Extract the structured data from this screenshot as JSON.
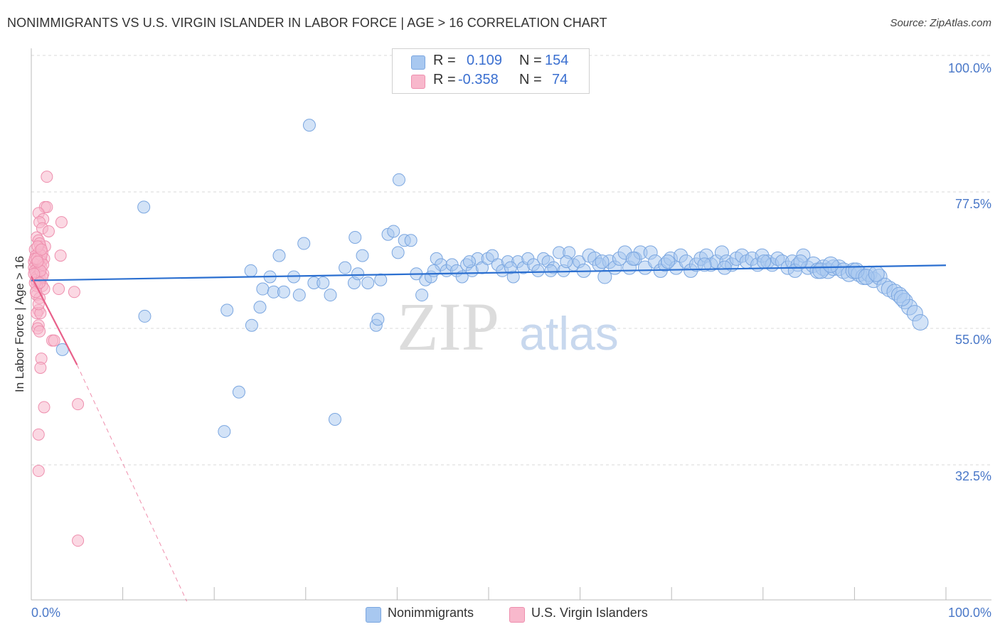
{
  "header": {
    "title": "NONIMMIGRANTS VS U.S. VIRGIN ISLANDER IN LABOR FORCE | AGE > 16 CORRELATION CHART",
    "source": "Source: ZipAtlas.com"
  },
  "watermark": {
    "zip": "ZIP",
    "atlas": "atlas"
  },
  "legend": {
    "r_label": "R =",
    "n_label": "N =",
    "series": [
      {
        "name": "Nonimmigrants",
        "r": "0.109",
        "n": "154",
        "color": "#a8c8f0"
      },
      {
        "name": "U.S. Virgin Islanders",
        "r": "-0.358",
        "n": "74",
        "color": "#f8b8cc"
      }
    ]
  },
  "colors": {
    "blue_fill": "#a8c8f0",
    "blue_stroke": "#7aa6e0",
    "blue_line": "#2b6fd0",
    "pink_fill": "#f8b8cc",
    "pink_stroke": "#ee8fae",
    "pink_line": "#e8608a",
    "tick_text": "#4a78c8",
    "grid": "#d8d8d8"
  },
  "chart_data": {
    "type": "scatter",
    "title": "NONIMMIGRANTS VS U.S. VIRGIN ISLANDER IN LABOR FORCE | AGE > 16 CORRELATION CHART",
    "xlabel": "",
    "ylabel": "In Labor Force | Age > 16",
    "xlim": [
      0,
      100
    ],
    "ylim": [
      10,
      102
    ],
    "y_ticks": [
      32.5,
      55.0,
      77.5,
      100.0
    ],
    "y_tick_labels": [
      "32.5%",
      "55.0%",
      "77.5%",
      "100.0%"
    ],
    "x_tick_labels": [
      "0.0%",
      "100.0%"
    ],
    "legend_position": "top-center",
    "series": [
      {
        "name": "Nonimmigrants",
        "trend": {
          "x": [
            0,
            100
          ],
          "y": [
            62.9,
            65.4
          ]
        },
        "points": [
          [
            12.3,
            75.0
          ],
          [
            3.4,
            51.5
          ],
          [
            12.4,
            57.0
          ],
          [
            21.4,
            58.0
          ],
          [
            21.1,
            38.0
          ],
          [
            22.7,
            44.5
          ],
          [
            24.0,
            64.5
          ],
          [
            24.1,
            55.5
          ],
          [
            25.0,
            58.5
          ],
          [
            25.3,
            61.5
          ],
          [
            26.1,
            63.5
          ],
          [
            26.5,
            61.0
          ],
          [
            27.1,
            67.0
          ],
          [
            27.6,
            61.0
          ],
          [
            28.7,
            63.5
          ],
          [
            29.3,
            60.5
          ],
          [
            29.8,
            69.0
          ],
          [
            30.4,
            88.5
          ],
          [
            30.9,
            62.5
          ],
          [
            31.9,
            62.5
          ],
          [
            32.7,
            60.5
          ],
          [
            33.2,
            40.0
          ],
          [
            34.3,
            65.0
          ],
          [
            35.3,
            62.5
          ],
          [
            35.4,
            70.0
          ],
          [
            35.7,
            64.0
          ],
          [
            36.2,
            67.0
          ],
          [
            36.8,
            62.5
          ],
          [
            37.7,
            55.5
          ],
          [
            37.9,
            56.5
          ],
          [
            38.2,
            63.0
          ],
          [
            39.0,
            70.5
          ],
          [
            39.6,
            71.0
          ],
          [
            40.1,
            67.5
          ],
          [
            40.2,
            79.5
          ],
          [
            40.8,
            69.5
          ],
          [
            41.5,
            69.5
          ],
          [
            42.1,
            64.0
          ],
          [
            42.7,
            60.5
          ],
          [
            43.1,
            63.0
          ],
          [
            43.7,
            63.5
          ],
          [
            44.3,
            66.5
          ],
          [
            44.8,
            65.5
          ],
          [
            45.4,
            64.5
          ],
          [
            46.0,
            65.5
          ],
          [
            46.5,
            64.5
          ],
          [
            47.1,
            63.5
          ],
          [
            47.6,
            65.5
          ],
          [
            48.2,
            64.5
          ],
          [
            48.8,
            66.5
          ],
          [
            49.3,
            65.0
          ],
          [
            49.9,
            66.5
          ],
          [
            50.4,
            67.0
          ],
          [
            51.0,
            65.5
          ],
          [
            51.5,
            64.5
          ],
          [
            52.1,
            66.0
          ],
          [
            52.7,
            63.5
          ],
          [
            53.2,
            66.0
          ],
          [
            53.8,
            65.0
          ],
          [
            54.3,
            66.5
          ],
          [
            54.9,
            65.5
          ],
          [
            55.4,
            64.5
          ],
          [
            56.0,
            66.5
          ],
          [
            56.5,
            66.0
          ],
          [
            57.1,
            65.0
          ],
          [
            57.7,
            67.5
          ],
          [
            58.2,
            64.5
          ],
          [
            58.8,
            67.5
          ],
          [
            59.3,
            65.5
          ],
          [
            59.9,
            66.0
          ],
          [
            60.4,
            64.5
          ],
          [
            61.0,
            67.0
          ],
          [
            61.6,
            66.5
          ],
          [
            62.1,
            65.5
          ],
          [
            62.7,
            63.5
          ],
          [
            63.2,
            66.0
          ],
          [
            63.8,
            65.0
          ],
          [
            64.3,
            66.5
          ],
          [
            64.9,
            67.5
          ],
          [
            65.4,
            65.0
          ],
          [
            66.0,
            66.5
          ],
          [
            66.6,
            67.5
          ],
          [
            67.1,
            65.0
          ],
          [
            67.7,
            67.5
          ],
          [
            68.2,
            66.0
          ],
          [
            68.8,
            64.5
          ],
          [
            69.3,
            65.5
          ],
          [
            69.9,
            66.5
          ],
          [
            70.5,
            65.0
          ],
          [
            71.0,
            67.0
          ],
          [
            71.6,
            66.0
          ],
          [
            72.1,
            64.5
          ],
          [
            72.7,
            65.5
          ],
          [
            73.2,
            66.5
          ],
          [
            73.8,
            67.0
          ],
          [
            74.3,
            65.5
          ],
          [
            74.9,
            66.0
          ],
          [
            75.5,
            67.5
          ],
          [
            76.0,
            66.0
          ],
          [
            76.6,
            65.5
          ],
          [
            77.1,
            66.5
          ],
          [
            77.7,
            67.0
          ],
          [
            78.2,
            66.0
          ],
          [
            78.8,
            66.5
          ],
          [
            79.4,
            65.5
          ],
          [
            79.9,
            67.0
          ],
          [
            80.5,
            66.0
          ],
          [
            81.0,
            65.5
          ],
          [
            81.6,
            66.5
          ],
          [
            82.1,
            66.0
          ],
          [
            82.7,
            65.0
          ],
          [
            83.2,
            66.0
          ],
          [
            83.8,
            65.5
          ],
          [
            84.4,
            67.0
          ],
          [
            84.9,
            65.0
          ],
          [
            85.5,
            65.5
          ],
          [
            86.0,
            64.5
          ],
          [
            86.6,
            65.0
          ],
          [
            87.1,
            64.5
          ],
          [
            87.7,
            65.0
          ],
          [
            88.3,
            65.0
          ],
          [
            88.8,
            64.5
          ],
          [
            89.4,
            64.0
          ],
          [
            89.9,
            64.5
          ],
          [
            90.5,
            64.0
          ],
          [
            91.0,
            63.5
          ],
          [
            91.6,
            64.0
          ],
          [
            92.1,
            63.0
          ],
          [
            92.7,
            63.5
          ],
          [
            93.3,
            62.0
          ],
          [
            93.8,
            61.5
          ],
          [
            94.4,
            61.0
          ],
          [
            94.9,
            60.5
          ],
          [
            95.5,
            59.5
          ],
          [
            96.0,
            58.5
          ],
          [
            96.6,
            57.5
          ],
          [
            97.2,
            56.0
          ],
          [
            65.8,
            66.5
          ],
          [
            73.6,
            65.5
          ],
          [
            80.1,
            66.0
          ],
          [
            86.3,
            64.5
          ],
          [
            90.2,
            64.5
          ],
          [
            58.5,
            66.0
          ],
          [
            44.0,
            64.5
          ],
          [
            47.9,
            66.0
          ],
          [
            52.4,
            65.0
          ],
          [
            56.8,
            64.5
          ],
          [
            62.4,
            66.0
          ],
          [
            69.6,
            66.0
          ],
          [
            75.8,
            65.0
          ],
          [
            83.5,
            64.5
          ],
          [
            87.4,
            65.5
          ],
          [
            91.3,
            63.5
          ],
          [
            95.2,
            60.0
          ],
          [
            92.4,
            64.0
          ],
          [
            84.1,
            66.0
          ]
        ]
      },
      {
        "name": "U.S. Virgin Islanders",
        "trend": {
          "x": [
            0,
            5
          ],
          "y": [
            63.6,
            49.0
          ]
        },
        "trend_extension": {
          "x": [
            5,
            17.0
          ],
          "y": [
            49.0,
            10.0
          ]
        },
        "points": [
          [
            1.7,
            80.0
          ],
          [
            1.5,
            75.0
          ],
          [
            1.7,
            75.0
          ],
          [
            0.8,
            74.0
          ],
          [
            1.3,
            73.0
          ],
          [
            0.9,
            72.5
          ],
          [
            3.3,
            72.5
          ],
          [
            1.2,
            71.5
          ],
          [
            1.9,
            71.0
          ],
          [
            0.6,
            70.0
          ],
          [
            0.8,
            69.5
          ],
          [
            1.0,
            68.5
          ],
          [
            1.5,
            68.5
          ],
          [
            0.4,
            68.0
          ],
          [
            0.8,
            67.5
          ],
          [
            1.2,
            67.5
          ],
          [
            3.2,
            67.0
          ],
          [
            0.5,
            67.0
          ],
          [
            1.0,
            66.5
          ],
          [
            1.4,
            66.5
          ],
          [
            0.3,
            66.0
          ],
          [
            0.7,
            66.0
          ],
          [
            1.1,
            66.0
          ],
          [
            0.5,
            65.5
          ],
          [
            0.9,
            65.5
          ],
          [
            0.3,
            65.0
          ],
          [
            0.7,
            65.0
          ],
          [
            1.1,
            65.0
          ],
          [
            0.4,
            64.5
          ],
          [
            0.8,
            64.5
          ],
          [
            0.5,
            64.0
          ],
          [
            0.9,
            64.0
          ],
          [
            0.6,
            63.5
          ],
          [
            1.0,
            63.0
          ],
          [
            0.7,
            62.5
          ],
          [
            1.2,
            62.0
          ],
          [
            1.4,
            61.5
          ],
          [
            3.0,
            61.5
          ],
          [
            4.7,
            61.0
          ],
          [
            0.6,
            60.5
          ],
          [
            0.9,
            60.0
          ],
          [
            0.8,
            58.0
          ],
          [
            0.6,
            57.5
          ],
          [
            1.0,
            57.5
          ],
          [
            0.8,
            55.5
          ],
          [
            0.7,
            55.0
          ],
          [
            0.9,
            54.5
          ],
          [
            2.3,
            53.0
          ],
          [
            2.5,
            53.0
          ],
          [
            1.1,
            50.0
          ],
          [
            1.0,
            48.5
          ],
          [
            1.4,
            42.0
          ],
          [
            5.1,
            42.5
          ],
          [
            0.8,
            37.5
          ],
          [
            0.8,
            31.5
          ],
          [
            5.1,
            20.0
          ],
          [
            0.4,
            66.5
          ],
          [
            1.3,
            64.0
          ],
          [
            0.6,
            62.0
          ],
          [
            1.1,
            67.0
          ],
          [
            0.5,
            63.0
          ],
          [
            0.9,
            69.0
          ],
          [
            1.3,
            65.5
          ],
          [
            0.4,
            62.5
          ],
          [
            0.7,
            68.5
          ],
          [
            1.2,
            63.5
          ],
          [
            0.6,
            66.5
          ],
          [
            1.0,
            64.5
          ],
          [
            0.5,
            61.0
          ],
          [
            0.8,
            59.0
          ],
          [
            1.1,
            68.0
          ],
          [
            0.3,
            64.0
          ],
          [
            0.7,
            66.0
          ],
          [
            0.9,
            62.5
          ]
        ]
      }
    ]
  }
}
